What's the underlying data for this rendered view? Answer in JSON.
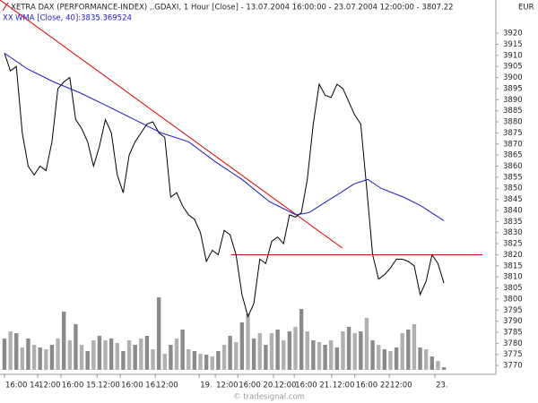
{
  "chart_data": {
    "type": "line",
    "title": "XETRA DAX (PERFORMANCE-INDEX) ,.GDAXI, 1 Hour [Close] - 13.07.2004 16:00:00 - 23.07.2004 12:00:00 - 3807.22",
    "currency": "EUR",
    "watermark": "© tradesignal.com",
    "xlim": [
      -0.75,
      82.75
    ],
    "ylim": [
      3766,
      3935
    ],
    "yticks": [
      3770,
      3775,
      3780,
      3785,
      3790,
      3795,
      3800,
      3805,
      3810,
      3815,
      3820,
      3825,
      3830,
      3835,
      3840,
      3845,
      3850,
      3855,
      3860,
      3865,
      3870,
      3875,
      3880,
      3885,
      3890,
      3895,
      3900,
      3905,
      3910,
      3915,
      3920
    ],
    "xticks": [
      {
        "value": 0,
        "label": "16:00 14."
      },
      {
        "value": 5.6,
        "label": "12:00"
      },
      {
        "value": 9.5,
        "label": "16:00 15."
      },
      {
        "value": 15.6,
        "label": "12:00"
      },
      {
        "value": 19.5,
        "label": "16:00 16."
      },
      {
        "value": 25.4,
        "label": "12:00"
      },
      {
        "value": 32.8,
        "label": "19."
      },
      {
        "value": 35.5,
        "label": "12:00"
      },
      {
        "value": 39.3,
        "label": "16:00 20."
      },
      {
        "value": 45.3,
        "label": "12:00"
      },
      {
        "value": 48.8,
        "label": "16:00 21."
      },
      {
        "value": 55.1,
        "label": "12:00"
      },
      {
        "value": 59.0,
        "label": "16:00 22."
      },
      {
        "value": 64.8,
        "label": "12:00"
      },
      {
        "value": 72.5,
        "label": "23."
      }
    ],
    "series": [
      {
        "color": "#000000",
        "x": [
          0,
          1,
          2,
          3,
          4,
          5,
          6,
          7,
          8,
          9,
          10,
          11,
          12,
          13,
          14,
          15,
          16,
          17,
          18,
          19,
          20,
          21,
          22,
          23,
          24,
          25,
          26,
          27,
          28,
          29,
          30,
          31,
          32,
          33,
          34,
          35,
          36,
          37,
          38,
          39,
          40,
          41,
          42,
          43,
          44,
          45,
          46,
          47,
          48,
          49,
          50,
          51,
          52,
          53,
          54,
          55,
          56,
          57,
          58,
          59,
          60,
          61,
          62,
          63,
          64,
          65,
          66,
          67,
          68,
          69,
          70,
          71,
          72,
          73,
          74
        ],
        "values": [
          3911,
          3903,
          3905,
          3875,
          3860,
          3856,
          3860,
          3858,
          3871,
          3895,
          3898,
          3900,
          3881,
          3877,
          3871,
          3860,
          3869,
          3881,
          3875,
          3856,
          3848,
          3865,
          3871,
          3875,
          3879,
          3880,
          3875,
          3873,
          3846,
          3848,
          3842,
          3838,
          3836,
          3830,
          3817,
          3822,
          3820,
          3831,
          3829,
          3820,
          3802,
          3792,
          3798,
          3818,
          3816,
          3826,
          3828,
          3825,
          3838,
          3837,
          3839,
          3854,
          3879,
          3897,
          3892,
          3891,
          3897,
          3895,
          3889,
          3883,
          3879,
          3850,
          3820,
          3809,
          3811,
          3814,
          3818,
          3818,
          3817,
          3815,
          3802,
          3808,
          3820,
          3816,
          3807.22
        ]
      },
      {
        "name": "WMA [Close, 40]:3835.369524",
        "color": "#1a1acc",
        "x": [
          0,
          3.8,
          8.3,
          12.8,
          17.4,
          21.9,
          26.4,
          31,
          35.5,
          40,
          44.6,
          49.1,
          51.3,
          53.6,
          56.6,
          58.9,
          61.2,
          63.4,
          67.2,
          70.2,
          74
        ],
        "values": [
          3911,
          3904,
          3898,
          3893,
          3887,
          3881,
          3875,
          3871,
          3862,
          3854,
          3844,
          3838,
          3839,
          3843,
          3848,
          3852,
          3854,
          3850,
          3846,
          3842,
          3835.37
        ]
      }
    ],
    "trendlines": [
      {
        "color": "#e00000",
        "x": [
          -0.75,
          56.9
        ],
        "values": [
          3935,
          3823
        ]
      },
      {
        "color": "#e00000",
        "x": [
          38.2,
          80.5
        ],
        "values": [
          3820,
          3820
        ]
      }
    ],
    "volume": {
      "color": "#8a8a8a",
      "lim": [
        0,
        100
      ],
      "values": [
        35,
        43,
        41,
        25,
        35,
        28,
        25,
        23,
        28,
        35,
        65,
        33,
        51,
        28,
        21,
        33,
        38,
        33,
        35,
        30,
        21,
        33,
        28,
        35,
        38,
        23,
        81,
        18,
        28,
        35,
        45,
        23,
        21,
        18,
        17,
        15,
        21,
        28,
        38,
        31,
        53,
        63,
        35,
        41,
        28,
        41,
        45,
        33,
        43,
        48,
        68,
        43,
        33,
        31,
        28,
        33,
        25,
        43,
        48,
        41,
        43,
        58,
        33,
        28,
        23,
        21,
        25,
        41,
        45,
        51,
        25,
        23,
        15,
        10,
        3
      ]
    }
  }
}
